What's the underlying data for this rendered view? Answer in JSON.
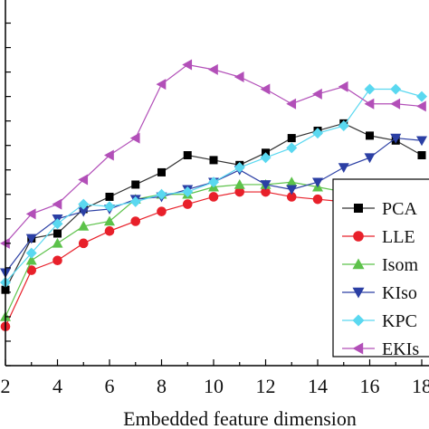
{
  "chart_data": {
    "type": "line",
    "xlabel": "Embedded feature dimension",
    "ylabel": "",
    "title": "",
    "x": [
      2,
      3,
      4,
      5,
      6,
      7,
      8,
      9,
      10,
      11,
      12,
      13,
      14,
      15,
      16,
      17,
      18
    ],
    "xlim": [
      2,
      18
    ],
    "ylim": [
      0,
      14.5
    ],
    "xticks": [
      2,
      4,
      6,
      8,
      10,
      12,
      14,
      16,
      18
    ],
    "xtick_labels": [
      "2",
      "4",
      "6",
      "8",
      "10",
      "12",
      "14",
      "16",
      "18"
    ],
    "legend_position": "right",
    "series": [
      {
        "name": "PCA",
        "marker": "square",
        "color": "#000000",
        "line_color": "#333333",
        "values": [
          3.1,
          5.2,
          5.4,
          6.4,
          6.9,
          7.4,
          7.9,
          8.6,
          8.4,
          8.2,
          8.7,
          9.3,
          9.6,
          9.9,
          9.4,
          9.2,
          8.6
        ]
      },
      {
        "name": "LLE",
        "marker": "circle",
        "color": "#e8202a",
        "line_color": "#e8202a",
        "values": [
          1.6,
          3.9,
          4.3,
          5.0,
          5.5,
          5.9,
          6.3,
          6.6,
          6.9,
          7.1,
          7.1,
          6.9,
          6.8,
          6.7,
          6.7,
          6.4,
          6.2
        ]
      },
      {
        "name": "Isomap",
        "marker": "triangle-up",
        "color": "#5cc24a",
        "line_color": "#5cc24a",
        "values": [
          2.0,
          4.3,
          5.0,
          5.7,
          5.9,
          6.8,
          7.0,
          7.0,
          7.3,
          7.4,
          7.4,
          7.5,
          7.3,
          7.1,
          6.8,
          6.5,
          6.3
        ]
      },
      {
        "name": "KIsomap",
        "marker": "triangle-down",
        "color": "#2b3fa4",
        "line_color": "#2b3fa4",
        "values": [
          3.8,
          5.2,
          6.0,
          6.3,
          6.4,
          6.8,
          6.9,
          7.2,
          7.5,
          8.0,
          7.4,
          7.2,
          7.5,
          8.1,
          8.5,
          9.3,
          9.2
        ]
      },
      {
        "name": "KPCA",
        "marker": "diamond",
        "color": "#5ad8f0",
        "line_color": "#5ad8f0",
        "values": [
          3.4,
          4.6,
          5.8,
          6.6,
          6.5,
          6.7,
          7.0,
          7.1,
          7.5,
          8.1,
          8.5,
          8.9,
          9.5,
          9.8,
          11.3,
          11.3,
          11.0
        ]
      },
      {
        "name": "EKIsomap",
        "marker": "triangle-left",
        "color": "#b24fb8",
        "line_color": "#b24fb8",
        "values": [
          5.0,
          6.2,
          6.6,
          7.6,
          8.6,
          9.3,
          11.5,
          12.3,
          12.1,
          11.8,
          11.3,
          10.7,
          11.1,
          11.4,
          10.7,
          10.7,
          10.6
        ]
      }
    ],
    "legend_labels": [
      "PCA",
      "LLE",
      "Isom",
      "KIso",
      "KPC",
      "EKIs"
    ]
  }
}
